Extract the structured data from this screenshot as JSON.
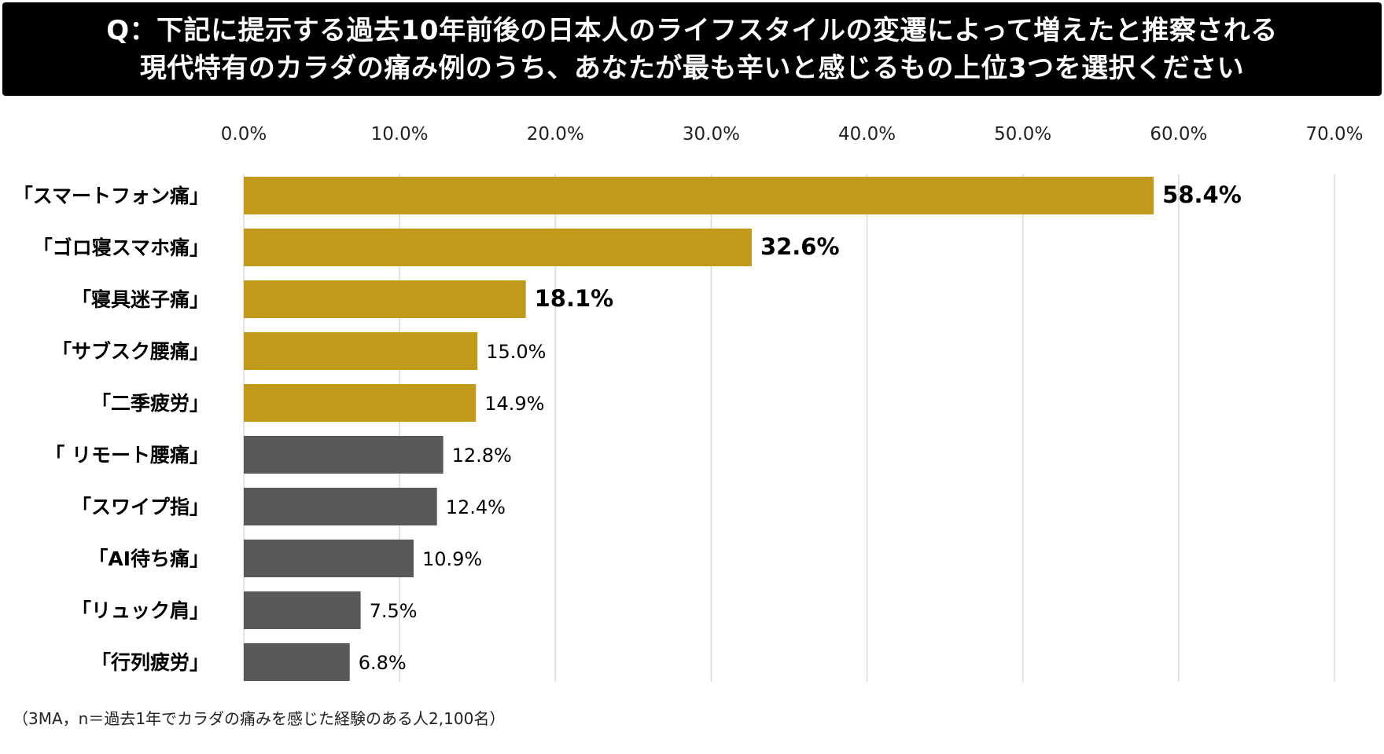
{
  "title": {
    "line1": "Q：下記に提示する過去10年前後の日本人のライフスタイルの変遷によって増えたと推察される",
    "line2": "現代特有のカラダの痛み例のうち、あなたが最も辛いと感じるもの上位3つを選択ください"
  },
  "footnote": "（3MA，n＝過去1年でカラダの痛みを感じた経験のある人2,100名）",
  "colors": {
    "highlight": "#C19A1A",
    "default": "#595959",
    "grid": "#D9D9D9",
    "text": "#000000"
  },
  "chart_data": {
    "type": "bar",
    "orientation": "horizontal",
    "categories": [
      "「スマートフォン痛」",
      "「ゴロ寝スマホ痛」",
      "「寝具迷子痛」",
      "「サブスク腰痛」",
      "「二季疲労」",
      "「 リモート腰痛」",
      "「スワイプ指」",
      "「AI待ち痛」",
      "「リュック肩」",
      "「行列疲労」"
    ],
    "values": [
      58.4,
      32.6,
      18.1,
      15.0,
      14.9,
      12.8,
      12.4,
      10.9,
      7.5,
      6.8
    ],
    "value_labels": [
      "58.4%",
      "32.6%",
      "18.1%",
      "15.0%",
      "14.9%",
      "12.8%",
      "12.4%",
      "10.9%",
      "7.5%",
      "6.8%"
    ],
    "highlight": [
      true,
      true,
      true,
      true,
      true,
      false,
      false,
      false,
      false,
      false
    ],
    "bold_labels": [
      true,
      true,
      true,
      false,
      false,
      false,
      false,
      false,
      false,
      false
    ],
    "xlim": [
      0,
      70
    ],
    "ticks": [
      0,
      10,
      20,
      30,
      40,
      50,
      60,
      70
    ],
    "tick_labels": [
      "0.0%",
      "10.0%",
      "20.0%",
      "30.0%",
      "40.0%",
      "50.0%",
      "60.0%",
      "70.0%"
    ],
    "axis_position": "top",
    "grid": true,
    "legend": false
  }
}
